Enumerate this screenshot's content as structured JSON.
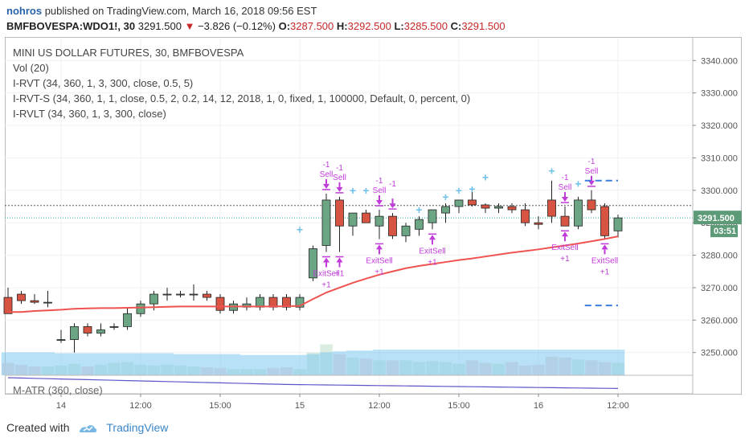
{
  "header": {
    "user": "nohros",
    "published_text": "published on TradingView.com, March 16, 2018 09:56 EST",
    "symbol": "BMFBOVESPA:WDO1!, 30",
    "last": "3291.500",
    "change": "−3.826 (−0.12%)",
    "o_label": "O:",
    "o_value": "3287.500",
    "h_label": "H:",
    "h_value": "3292.500",
    "l_label": "L:",
    "l_value": "3285.500",
    "c_label": "C:",
    "c_value": "3291.500"
  },
  "legend": {
    "title": "MINI US DOLLAR FUTURES, 30, BMFBOVESPA",
    "vol": "Vol (20)",
    "rvt": "I-RVT (34, 360, 1, 3, 300, close, 0.5, 5)",
    "rvts": "I-RVT-S (34, 360, 1, 1, close, 0.5, 2, 0.2, 14, 12, 2018, 1, 0, fixed, 1, 100000, Default, 0, percent, 0)",
    "rvlt": "I-RVLT (34, 360, 1, 3, 300, close)"
  },
  "lower_pane": {
    "title": "M-ATR (360, close)"
  },
  "price_badge": {
    "price": "3291.500",
    "countdown": "03:51"
  },
  "footer": {
    "created_with": "Created with",
    "brand": "TradingView"
  },
  "colors": {
    "up": "#6ba583",
    "down": "#d75442",
    "ma": "#ef5350",
    "signal": "#c03bd8",
    "plus_marker": "#6fc1ea",
    "volume_area": "#7ec8f0",
    "atr": "#5c54c8",
    "target_line": "#3b7ddd"
  },
  "chart_data": {
    "type": "candlestick",
    "y_axis": {
      "ylim": [
        3243,
        3347
      ],
      "ticks": [
        3250,
        3260,
        3270,
        3280,
        3290,
        3300,
        3310,
        3320,
        3330,
        3340
      ],
      "tick_labels": [
        "3250.000",
        "3260.000",
        "3270.000",
        "3280.000",
        "3290.000",
        "3300.000",
        "3310.000",
        "3320.000",
        "3330.000",
        "3340.000"
      ]
    },
    "x_axis": {
      "ticks": [
        {
          "label": "14",
          "bar": 4
        },
        {
          "label": "12:00",
          "bar": 10
        },
        {
          "label": "15:00",
          "bar": 16
        },
        {
          "label": "15",
          "bar": 22
        },
        {
          "label": "12:00",
          "bar": 28
        },
        {
          "label": "15:00",
          "bar": 34
        },
        {
          "label": "16",
          "bar": 40
        },
        {
          "label": "12:00",
          "bar": 46
        }
      ]
    },
    "candles": [
      {
        "o": 3267,
        "h": 3270,
        "l": 3262,
        "c": 3262
      },
      {
        "o": 3268,
        "h": 3269,
        "l": 3265,
        "c": 3266
      },
      {
        "o": 3266,
        "h": 3268,
        "l": 3265,
        "c": 3265.5
      },
      {
        "o": 3265.5,
        "h": 3269,
        "l": 3264,
        "c": 3265.5
      },
      {
        "o": 3254,
        "h": 3257,
        "l": 3253,
        "c": 3254
      },
      {
        "o": 3254,
        "h": 3259,
        "l": 3250,
        "c": 3258
      },
      {
        "o": 3258,
        "h": 3259,
        "l": 3255,
        "c": 3256
      },
      {
        "o": 3256,
        "h": 3259,
        "l": 3255,
        "c": 3257
      },
      {
        "o": 3258,
        "h": 3259,
        "l": 3257,
        "c": 3258
      },
      {
        "o": 3258,
        "h": 3264,
        "l": 3257,
        "c": 3262
      },
      {
        "o": 3262,
        "h": 3266,
        "l": 3261,
        "c": 3265
      },
      {
        "o": 3265,
        "h": 3269,
        "l": 3263,
        "c": 3268
      },
      {
        "o": 3268,
        "h": 3270,
        "l": 3266,
        "c": 3268
      },
      {
        "o": 3268,
        "h": 3269,
        "l": 3267,
        "c": 3268
      },
      {
        "o": 3268,
        "h": 3271,
        "l": 3266,
        "c": 3268
      },
      {
        "o": 3268,
        "h": 3269,
        "l": 3266,
        "c": 3267
      },
      {
        "o": 3267,
        "h": 3268,
        "l": 3262,
        "c": 3263
      },
      {
        "o": 3263,
        "h": 3266,
        "l": 3262,
        "c": 3265
      },
      {
        "o": 3264,
        "h": 3267,
        "l": 3263,
        "c": 3265
      },
      {
        "o": 3264,
        "h": 3268,
        "l": 3263,
        "c": 3267
      },
      {
        "o": 3267,
        "h": 3268,
        "l": 3263,
        "c": 3264
      },
      {
        "o": 3267,
        "h": 3268,
        "l": 3263,
        "c": 3264
      },
      {
        "o": 3264,
        "h": 3268,
        "l": 3263,
        "c": 3267
      },
      {
        "o": 3273,
        "h": 3283,
        "l": 3272,
        "c": 3282
      },
      {
        "o": 3283,
        "h": 3299,
        "l": 3281,
        "c": 3297
      },
      {
        "o": 3297,
        "h": 3298,
        "l": 3281,
        "c": 3289
      },
      {
        "o": 3289,
        "h": 3293,
        "l": 3286,
        "c": 3293
      },
      {
        "o": 3293,
        "h": 3294,
        "l": 3290,
        "c": 3290
      },
      {
        "o": 3289,
        "h": 3294,
        "l": 3285,
        "c": 3292
      },
      {
        "o": 3292,
        "h": 3293,
        "l": 3285,
        "c": 3286
      },
      {
        "o": 3286,
        "h": 3290,
        "l": 3284,
        "c": 3289
      },
      {
        "o": 3288,
        "h": 3292,
        "l": 3286,
        "c": 3291
      },
      {
        "o": 3290,
        "h": 3294,
        "l": 3288,
        "c": 3294
      },
      {
        "o": 3293,
        "h": 3296,
        "l": 3290,
        "c": 3295
      },
      {
        "o": 3295,
        "h": 3297,
        "l": 3293,
        "c": 3297
      },
      {
        "o": 3297,
        "h": 3301,
        "l": 3295,
        "c": 3295.5
      },
      {
        "o": 3295.5,
        "h": 3296,
        "l": 3293,
        "c": 3294.5
      },
      {
        "o": 3294.5,
        "h": 3296,
        "l": 3293,
        "c": 3295
      },
      {
        "o": 3295,
        "h": 3296,
        "l": 3293,
        "c": 3294
      },
      {
        "o": 3294,
        "h": 3296,
        "l": 3289,
        "c": 3290
      },
      {
        "o": 3290,
        "h": 3292,
        "l": 3288,
        "c": 3289.5
      },
      {
        "o": 3297,
        "h": 3303,
        "l": 3290,
        "c": 3292
      },
      {
        "o": 3292,
        "h": 3295,
        "l": 3289,
        "c": 3289
      },
      {
        "o": 3289,
        "h": 3298,
        "l": 3288,
        "c": 3297
      },
      {
        "o": 3297,
        "h": 3300,
        "l": 3293,
        "c": 3294
      },
      {
        "o": 3295,
        "h": 3296,
        "l": 3285,
        "c": 3286
      },
      {
        "o": 3287.5,
        "h": 3292.5,
        "l": 3285.5,
        "c": 3291.5
      }
    ],
    "ma": [
      3262.5,
      3262.5,
      3262.8,
      3263.0,
      3263.2,
      3263.5,
      3263.6,
      3263.7,
      3263.7,
      3263.8,
      3263.9,
      3264.0,
      3264.1,
      3264.2,
      3264.2,
      3264.2,
      3264.2,
      3264.2,
      3264.2,
      3264.2,
      3264.2,
      3264.3,
      3264.4,
      3266.5,
      3268.5,
      3270.0,
      3271.5,
      3272.8,
      3274.0,
      3275.0,
      3276.0,
      3276.7,
      3277.3,
      3277.9,
      3278.5,
      3279.0,
      3279.6,
      3280.2,
      3280.8,
      3281.3,
      3281.8,
      3282.4,
      3283.0,
      3283.6,
      3284.3,
      3285.0,
      3285.8
    ],
    "volume": [
      28,
      24,
      20,
      20,
      22,
      26,
      20,
      24,
      28,
      30,
      24,
      22,
      24,
      22,
      20,
      18,
      16,
      14,
      14,
      14,
      16,
      18,
      14,
      52,
      70,
      48,
      40,
      38,
      34,
      34,
      34,
      30,
      32,
      30,
      26,
      34,
      28,
      26,
      30,
      22,
      24,
      42,
      40,
      36,
      34,
      30,
      28
    ],
    "volume_ma": [
      26,
      26,
      26,
      26,
      25,
      25,
      25,
      25,
      25,
      25,
      25,
      25,
      25,
      24,
      24,
      24,
      24,
      24,
      23,
      23,
      23,
      23,
      23,
      24,
      26,
      27,
      28,
      28,
      29,
      29,
      29,
      29,
      29,
      29,
      29,
      29,
      29,
      29,
      29,
      29,
      29,
      29,
      29,
      29,
      29,
      29,
      29
    ],
    "signals": [
      {
        "bar": 24,
        "type": "sell",
        "label_top": "-1",
        "label": "Sell"
      },
      {
        "bar": 25,
        "type": "sell",
        "label_top": "-1",
        "label": "Sell"
      },
      {
        "bar": 28,
        "type": "sell",
        "label_top": "-1",
        "label": "Sell"
      },
      {
        "bar": 29,
        "type": "sell",
        "label_top": "-1",
        "label": ""
      },
      {
        "bar": 42,
        "type": "sell",
        "label_top": "-1",
        "label": "Sell"
      },
      {
        "bar": 44,
        "type": "sell",
        "label_top": "-1",
        "label": "Sell"
      },
      {
        "bar": 24,
        "type": "exit",
        "label": "ExitSell",
        "label_bottom": "+1"
      },
      {
        "bar": 25,
        "type": "exit",
        "label": "",
        "label_bottom": "+1"
      },
      {
        "bar": 28,
        "type": "exit",
        "label": "ExitSell",
        "label_bottom": "+1"
      },
      {
        "bar": 32,
        "type": "exit",
        "label": "ExitSell",
        "label_bottom": "+1"
      },
      {
        "bar": 42,
        "type": "exit",
        "label": "ExitSell",
        "label_bottom": "+1"
      },
      {
        "bar": 45,
        "type": "exit",
        "label": "ExitSell",
        "label_bottom": "+1"
      }
    ],
    "plus_markers": [
      {
        "bar": 22,
        "y": 3288
      },
      {
        "bar": 26,
        "y": 3300
      },
      {
        "bar": 27,
        "y": 3300
      },
      {
        "bar": 31,
        "y": 3294
      },
      {
        "bar": 33,
        "y": 3298
      },
      {
        "bar": 34,
        "y": 3300
      },
      {
        "bar": 35,
        "y": 3300.5
      },
      {
        "bar": 36,
        "y": 3304
      },
      {
        "bar": 41,
        "y": 3306
      },
      {
        "bar": 43,
        "y": 3302
      }
    ],
    "target_lines": [
      {
        "y": 3303,
        "from_bar": 43.5,
        "to_bar": 46
      },
      {
        "y": 3264.5,
        "from_bar": 43.5,
        "to_bar": 46
      }
    ],
    "last_price": 3291.5,
    "prev_close": 3295.3,
    "atr": [
      0.9,
      0.88,
      0.86,
      0.84,
      0.82,
      0.8,
      0.78,
      0.76,
      0.74,
      0.72,
      0.7,
      0.68,
      0.66,
      0.64,
      0.62,
      0.6,
      0.58,
      0.56,
      0.54,
      0.52,
      0.5,
      0.48,
      0.47,
      0.46,
      0.45,
      0.44,
      0.43,
      0.42,
      0.41,
      0.4,
      0.39,
      0.38,
      0.37,
      0.36,
      0.35,
      0.34,
      0.33,
      0.32,
      0.31,
      0.3,
      0.29,
      0.28,
      0.27,
      0.26,
      0.25,
      0.24,
      0.23
    ]
  }
}
